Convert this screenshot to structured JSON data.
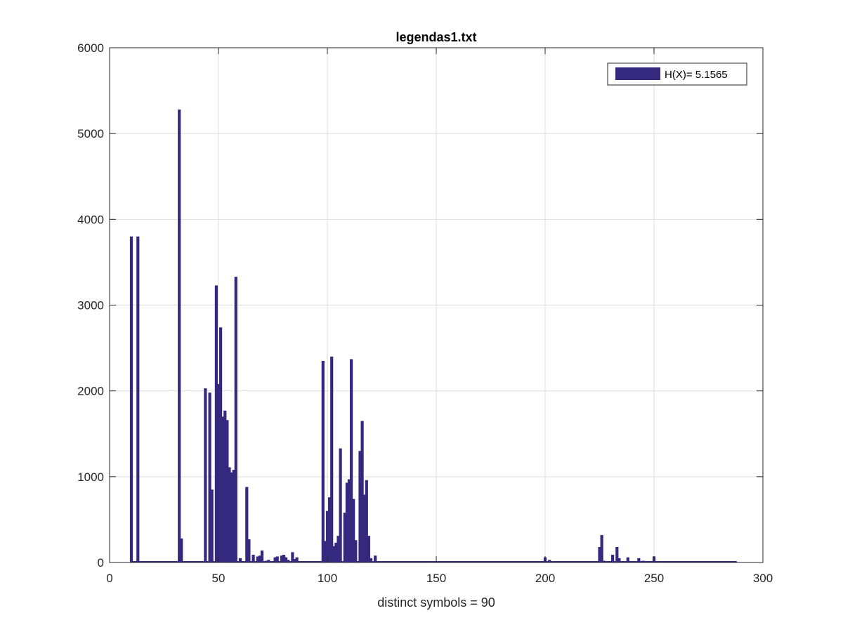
{
  "chart_data": {
    "type": "bar",
    "title": "legendas1.txt",
    "xlabel": "distinct symbols = 90",
    "ylabel": "",
    "xlim": [
      0,
      300
    ],
    "ylim": [
      0,
      6000
    ],
    "xticks": [
      0,
      50,
      100,
      150,
      200,
      250,
      300
    ],
    "yticks": [
      0,
      1000,
      2000,
      3000,
      4000,
      5000,
      6000
    ],
    "xtick_labels": [
      "0",
      "50",
      "100",
      "150",
      "200",
      "250",
      "300"
    ],
    "ytick_labels": [
      "0",
      "1000",
      "2000",
      "3000",
      "4000",
      "5000",
      "6000"
    ],
    "grid": true,
    "legend_placement": "top-right",
    "bar_color": "#35297F",
    "series": [
      {
        "name": "H(X)= 5.1565",
        "x": [
          10,
          13,
          32,
          33,
          44,
          46,
          47,
          49,
          50,
          51,
          52,
          53,
          54,
          55,
          56,
          57,
          58,
          60,
          63,
          64,
          66,
          68,
          69,
          70,
          72,
          73,
          76,
          77,
          79,
          80,
          81,
          82,
          84,
          85,
          86,
          98,
          99,
          100,
          101,
          102,
          103,
          104,
          105,
          106,
          108,
          109,
          110,
          111,
          112,
          113,
          115,
          116,
          117,
          118,
          119,
          120,
          122,
          200,
          202,
          211,
          225,
          226,
          227,
          231,
          233,
          234,
          238,
          243,
          245,
          250
        ],
        "values": [
          3800,
          3800,
          5280,
          280,
          2030,
          1980,
          850,
          3230,
          2080,
          2740,
          1700,
          1770,
          1660,
          1110,
          1050,
          1080,
          3330,
          50,
          880,
          270,
          90,
          70,
          80,
          140,
          20,
          30,
          60,
          70,
          80,
          90,
          60,
          30,
          120,
          40,
          60,
          2350,
          250,
          600,
          760,
          2400,
          190,
          230,
          310,
          1330,
          580,
          930,
          970,
          2370,
          740,
          260,
          1300,
          1650,
          790,
          960,
          310,
          50,
          80,
          60,
          30,
          10,
          180,
          320,
          20,
          90,
          180,
          50,
          60,
          50,
          20,
          70
        ]
      }
    ]
  }
}
